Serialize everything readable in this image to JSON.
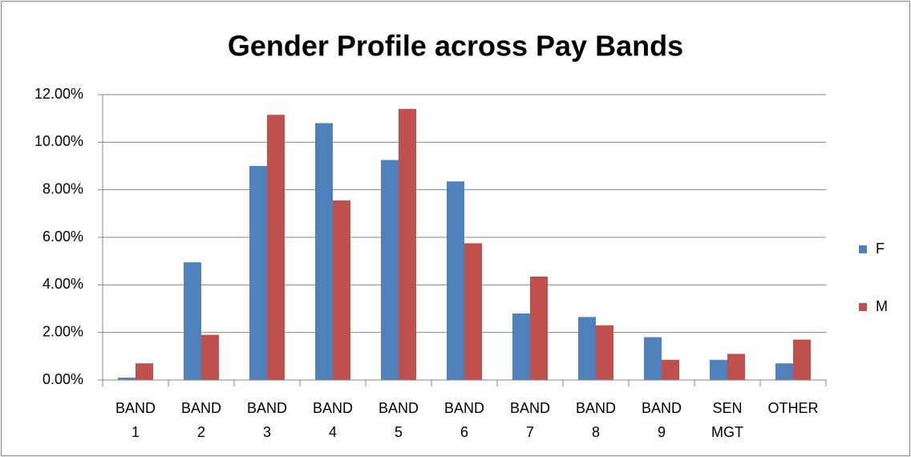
{
  "chart_data": {
    "type": "bar",
    "title": "Gender Profile across Pay Bands",
    "categories": [
      "BAND 1",
      "BAND 2",
      "BAND 3",
      "BAND 4",
      "BAND 5",
      "BAND 6",
      "BAND 7",
      "BAND 8",
      "BAND 9",
      "SEN MGT",
      "OTHER"
    ],
    "series": [
      {
        "name": "F",
        "color": "#4f81bd",
        "values": [
          0.1,
          4.95,
          9.0,
          10.8,
          9.25,
          8.35,
          2.8,
          2.65,
          1.8,
          0.85,
          0.7
        ]
      },
      {
        "name": "M",
        "color": "#c0504d",
        "values": [
          0.7,
          1.9,
          11.15,
          7.55,
          11.4,
          5.75,
          4.35,
          2.3,
          0.85,
          1.1,
          1.7
        ]
      }
    ],
    "ylim": [
      0,
      12
    ],
    "yticks": [
      {
        "value": 0,
        "label": "0.00%"
      },
      {
        "value": 2,
        "label": "2.00%"
      },
      {
        "value": 4,
        "label": "4.00%"
      },
      {
        "value": 6,
        "label": "6.00%"
      },
      {
        "value": 8,
        "label": "8.00%"
      },
      {
        "value": 10,
        "label": "10.00%"
      },
      {
        "value": 12,
        "label": "12.00%"
      }
    ],
    "grid": true,
    "legend": "right"
  }
}
